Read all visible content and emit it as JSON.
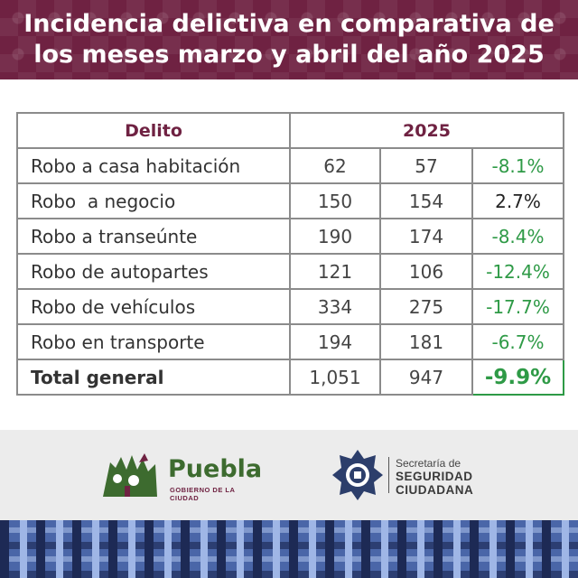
{
  "header": {
    "title": "Incidencia delictiva en comparativa de los meses marzo y abril del año 2025"
  },
  "table": {
    "header_delito": "Delito",
    "header_year": "2025",
    "rows": [
      {
        "label": "Robo a casa habitación",
        "marzo": "62",
        "abril": "57",
        "variacion": "-8.1%"
      },
      {
        "label": "Robo  a negocio",
        "marzo": "150",
        "abril": "154",
        "variacion": "2.7%"
      },
      {
        "label": "Robo a transeúnte",
        "marzo": "190",
        "abril": "174",
        "variacion": "-8.4%"
      },
      {
        "label": "Robo de autopartes",
        "marzo": "121",
        "abril": "106",
        "variacion": "-12.4%"
      },
      {
        "label": "Robo de vehículos",
        "marzo": "334",
        "abril": "275",
        "variacion": "-17.7%"
      },
      {
        "label": "Robo en transporte",
        "marzo": "194",
        "abril": "181",
        "variacion": "-6.7%"
      }
    ],
    "total": {
      "label": "Total general",
      "marzo": "1,051",
      "abril": "947",
      "variacion": "-9.9%"
    }
  },
  "logos": {
    "puebla_name": "Puebla",
    "puebla_sub": "GOBIERNO DE LA CIUDAD",
    "ssc_line1": "Secretaría de",
    "ssc_line2": "SEGURIDAD",
    "ssc_line3": "CIUDADANA"
  },
  "colors": {
    "brand": "#6f2242",
    "decrease": "#2e9a46",
    "border": "#8b8b8b"
  }
}
